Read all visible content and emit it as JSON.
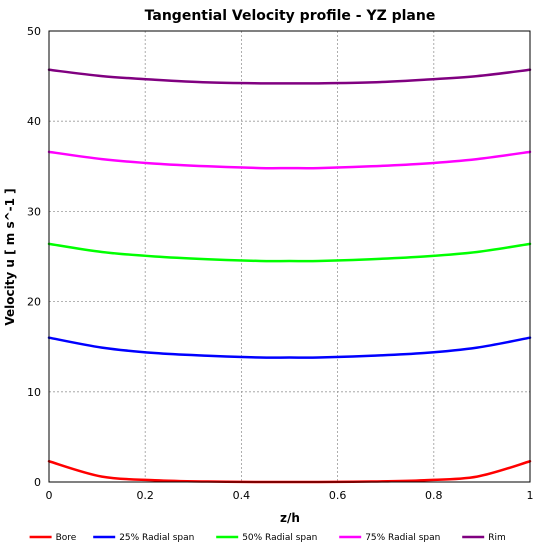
{
  "chart_data": {
    "type": "line",
    "title": "Tangential Velocity profile - YZ plane",
    "xlabel": "z/h",
    "ylabel": "Velocity u [ m s^-1 ]",
    "xlim": [
      0,
      1
    ],
    "ylim": [
      0,
      50
    ],
    "x_ticks": [
      0,
      0.2,
      0.4,
      0.6,
      0.8,
      1
    ],
    "x_tick_labels": [
      "0",
      "0.2",
      "0.4",
      "0.6",
      "0.8",
      "1"
    ],
    "y_ticks": [
      0,
      10,
      20,
      30,
      40,
      50
    ],
    "y_tick_labels": [
      "0",
      "10",
      "20",
      "30",
      "40",
      "50"
    ],
    "grid": true,
    "legend_position": "bottom",
    "x": [
      0,
      0.11,
      0.22,
      0.33,
      0.44,
      0.5,
      0.56,
      0.67,
      0.78,
      0.89,
      1
    ],
    "series": [
      {
        "name": "Bore",
        "color": "#ff0000",
        "values": [
          2.3,
          0.6,
          0.2,
          0.05,
          0.0,
          0.0,
          0.0,
          0.05,
          0.2,
          0.6,
          2.3
        ]
      },
      {
        "name": "25% Radial span",
        "color": "#0000ff",
        "values": [
          16.0,
          14.9,
          14.3,
          14.0,
          13.8,
          13.8,
          13.8,
          14.0,
          14.3,
          14.9,
          16.0
        ]
      },
      {
        "name": "50% Radial span",
        "color": "#00ff00",
        "values": [
          26.4,
          25.5,
          25.0,
          24.7,
          24.5,
          24.5,
          24.5,
          24.7,
          25.0,
          25.5,
          26.4
        ]
      },
      {
        "name": "75% Radial span",
        "color": "#ff00ff",
        "values": [
          36.6,
          35.8,
          35.3,
          35.0,
          34.8,
          34.8,
          34.8,
          35.0,
          35.3,
          35.8,
          36.6
        ]
      },
      {
        "name": "Rim",
        "color": "#800080",
        "values": [
          45.7,
          45.0,
          44.6,
          44.3,
          44.2,
          44.2,
          44.2,
          44.3,
          44.6,
          45.0,
          45.7
        ]
      }
    ]
  }
}
